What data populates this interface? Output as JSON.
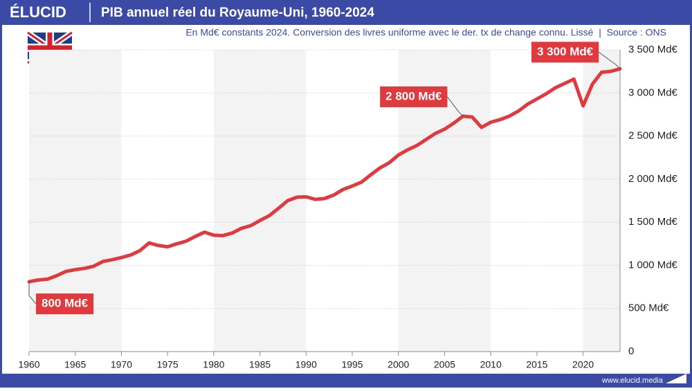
{
  "brand": "ÉLUCID",
  "footer": "www.elucid.media",
  "chart_data": {
    "type": "line",
    "title": "PIB annuel réel du Royaume-Uni, 1960-2024",
    "subtitle": "En Md€ constants 2024. Conversion des livres uniforme avec le der. tx de change connu. Lissé  |  Source : ONS",
    "x": [
      1960,
      1961,
      1962,
      1963,
      1964,
      1965,
      1966,
      1967,
      1968,
      1969,
      1970,
      1971,
      1972,
      1973,
      1974,
      1975,
      1976,
      1977,
      1978,
      1979,
      1980,
      1981,
      1982,
      1983,
      1984,
      1985,
      1986,
      1987,
      1988,
      1989,
      1990,
      1991,
      1992,
      1993,
      1994,
      1995,
      1996,
      1997,
      1998,
      1999,
      2000,
      2001,
      2002,
      2003,
      2004,
      2005,
      2006,
      2007,
      2008,
      2009,
      2010,
      2011,
      2012,
      2013,
      2014,
      2015,
      2016,
      2017,
      2018,
      2019,
      2020,
      2021,
      2022,
      2023,
      2024
    ],
    "series": [
      {
        "name": "PIB réel",
        "color": "#e0393e",
        "values": [
          810,
          830,
          840,
          880,
          930,
          950,
          965,
          990,
          1045,
          1065,
          1090,
          1120,
          1170,
          1260,
          1230,
          1215,
          1250,
          1280,
          1335,
          1385,
          1350,
          1345,
          1375,
          1430,
          1460,
          1520,
          1575,
          1660,
          1750,
          1790,
          1795,
          1765,
          1775,
          1815,
          1880,
          1920,
          1965,
          2050,
          2130,
          2190,
          2280,
          2340,
          2390,
          2460,
          2530,
          2580,
          2650,
          2730,
          2720,
          2600,
          2660,
          2690,
          2730,
          2790,
          2870,
          2930,
          2990,
          3060,
          3110,
          3160,
          2850,
          3100,
          3240,
          3250,
          3280
        ]
      }
    ],
    "xlim": [
      1960,
      2024
    ],
    "xticks": [
      1960,
      1965,
      1970,
      1975,
      1980,
      1985,
      1990,
      1995,
      2000,
      2005,
      2010,
      2015,
      2020
    ],
    "ylim": [
      0,
      3500
    ],
    "yticks": [
      0,
      {
        "value": 500,
        "label": "500 Md€"
      },
      {
        "value": 1000,
        "label": "1 000 Md€"
      },
      {
        "value": 1500,
        "label": "1 500 Md€"
      },
      {
        "value": 2000,
        "label": "2 000 Md€"
      },
      {
        "value": 2500,
        "label": "2 500 Md€"
      },
      {
        "value": 3000,
        "label": "3 000 Md€"
      },
      {
        "value": 3500,
        "label": "3 500 Md€"
      }
    ],
    "grid": true,
    "annotations": [
      {
        "text": "800 Md€",
        "x": 1960
      },
      {
        "text": "2 800 Md€",
        "x": 2007
      },
      {
        "text": "3 300 Md€",
        "x": 2024
      }
    ]
  }
}
